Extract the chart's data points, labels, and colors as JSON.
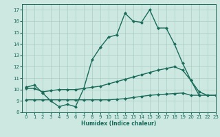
{
  "xlabel": "Humidex (Indice chaleur)",
  "bg_color": "#cce8e0",
  "grid_color": "#aaccc4",
  "line_color": "#1a6b5a",
  "xlim": [
    -0.5,
    23
  ],
  "ylim": [
    8,
    17.5
  ],
  "xticks": [
    0,
    1,
    2,
    3,
    4,
    5,
    6,
    7,
    8,
    9,
    10,
    11,
    12,
    13,
    14,
    15,
    16,
    17,
    18,
    19,
    20,
    21,
    22,
    23
  ],
  "yticks": [
    8,
    9,
    10,
    11,
    12,
    13,
    14,
    15,
    16,
    17
  ],
  "line1_x": [
    0,
    1,
    2,
    3,
    4,
    5,
    6,
    7,
    8,
    9,
    10,
    11,
    12,
    13,
    14,
    15,
    16,
    17,
    18,
    19,
    20,
    21
  ],
  "line1_y": [
    10.2,
    10.4,
    9.7,
    9.0,
    8.5,
    8.7,
    8.5,
    10.1,
    12.6,
    13.7,
    14.6,
    14.8,
    16.7,
    16.0,
    15.9,
    17.0,
    15.4,
    15.4,
    14.0,
    12.3,
    10.8,
    9.5
  ],
  "line2_x": [
    0,
    1,
    2,
    3,
    4,
    5,
    6,
    7,
    8,
    9,
    10,
    11,
    12,
    13,
    14,
    15,
    16,
    17,
    18,
    19,
    20,
    21,
    22,
    23
  ],
  "line2_y": [
    10.1,
    10.1,
    9.8,
    9.9,
    10.0,
    10.0,
    10.0,
    10.1,
    10.2,
    10.3,
    10.5,
    10.7,
    10.9,
    11.1,
    11.3,
    11.5,
    11.7,
    11.85,
    12.0,
    11.7,
    10.8,
    9.8,
    9.5,
    9.5
  ],
  "line3_x": [
    0,
    1,
    2,
    3,
    4,
    5,
    6,
    7,
    8,
    9,
    10,
    11,
    12,
    13,
    14,
    15,
    16,
    17,
    18,
    19,
    20,
    21,
    22,
    23
  ],
  "line3_y": [
    9.1,
    9.1,
    9.1,
    9.1,
    9.1,
    9.1,
    9.1,
    9.1,
    9.1,
    9.1,
    9.1,
    9.15,
    9.2,
    9.3,
    9.4,
    9.5,
    9.55,
    9.6,
    9.65,
    9.7,
    9.5,
    9.5,
    9.5,
    9.5
  ],
  "marker_size": 2.5,
  "line_width": 1.0
}
